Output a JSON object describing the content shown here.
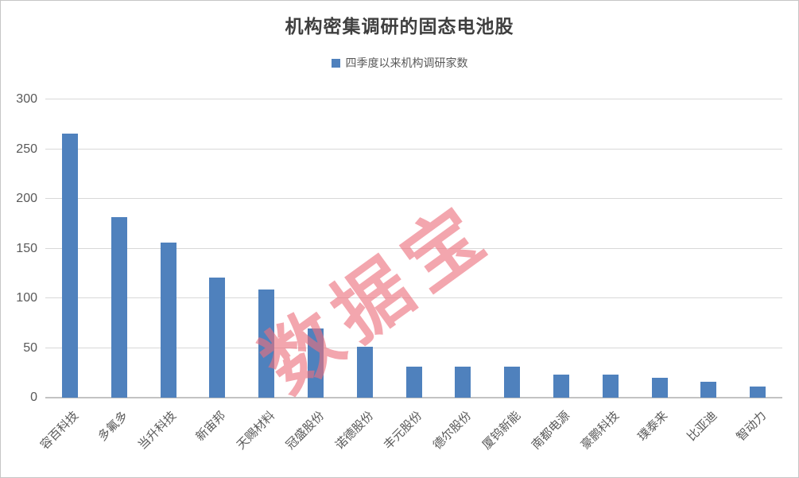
{
  "title": "机构密集调研的固态电池股",
  "legend": {
    "label": "四季度以来机构调研家数",
    "marker_color": "#4f81bd"
  },
  "watermark": {
    "text": "数据宝",
    "color": "rgba(236,112,124,0.62)"
  },
  "chart_data": {
    "type": "bar",
    "title": "机构密集调研的固态电池股",
    "legend": [
      "四季度以来机构调研家数"
    ],
    "legend_position": "top",
    "categories": [
      "容百科技",
      "多氟多",
      "当升科技",
      "新宙邦",
      "天赐材料",
      "冠盛股份",
      "诺德股份",
      "丰元股份",
      "德尔股份",
      "厦钨新能",
      "南都电源",
      "豪鹏科技",
      "璞泰来",
      "比亚迪",
      "智动力"
    ],
    "values": [
      266,
      182,
      156,
      121,
      109,
      70,
      51,
      31,
      31,
      31,
      23,
      23,
      20,
      16,
      11
    ],
    "bar_color": "#4f81bd",
    "xlabel": "",
    "ylabel": "",
    "ylim": [
      0,
      300
    ],
    "yticks": [
      0,
      50,
      100,
      150,
      200,
      250,
      300
    ],
    "grid": true,
    "gridline_color": "#d8d8d8"
  }
}
